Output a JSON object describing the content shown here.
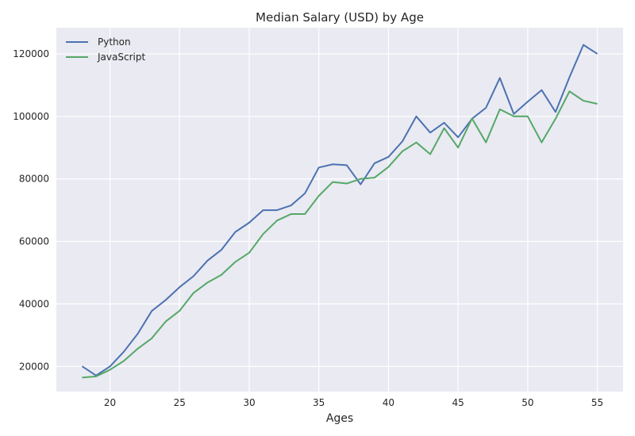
{
  "chart_data": {
    "type": "line",
    "title": "Median Salary (USD) by Age",
    "xlabel": "Ages",
    "ylabel": "",
    "xlim": [
      16.15,
      56.85
    ],
    "ylim": [
      11950,
      128350
    ],
    "xticks": [
      20,
      25,
      30,
      35,
      40,
      45,
      50,
      55
    ],
    "yticks": [
      20000,
      40000,
      60000,
      80000,
      100000,
      120000
    ],
    "grid": true,
    "legend_position": "top-left",
    "x": [
      18,
      19,
      20,
      21,
      22,
      23,
      24,
      25,
      26,
      27,
      28,
      29,
      30,
      31,
      32,
      33,
      34,
      35,
      36,
      37,
      38,
      39,
      40,
      41,
      42,
      43,
      44,
      45,
      46,
      47,
      48,
      49,
      50,
      51,
      52,
      53,
      54,
      55
    ],
    "series": [
      {
        "name": "Python",
        "color": "#4c72b0",
        "values": [
          20046,
          17100,
          20000,
          24744,
          30500,
          37732,
          41247,
          45372,
          48876,
          53850,
          57287,
          63016,
          65998,
          70003,
          70000,
          71496,
          75370,
          83640,
          84666,
          84392,
          78254,
          85000,
          87038,
          91991,
          100000,
          94796,
          97962,
          93302,
          99240,
          102736,
          112285,
          100771,
          104708,
          108423,
          101407,
          112542,
          122870,
          120000
        ]
      },
      {
        "name": "JavaScript",
        "color": "#55a868",
        "values": [
          16446,
          16791,
          18942,
          21780,
          25704,
          29000,
          34372,
          37810,
          43515,
          46823,
          49293,
          53437,
          56373,
          62375,
          66674,
          68745,
          68746,
          74583,
          79000,
          78508,
          79996,
          80403,
          83820,
          88833,
          91660,
          87892,
          96243,
          90000,
          99313,
          91660,
          102264,
          100000,
          100000,
          91660,
          99240,
          108000,
          105000,
          104000
        ]
      }
    ]
  },
  "colors": {
    "plot_background": "#eaeaf2",
    "grid": "#ffffff",
    "text": "#262626"
  }
}
